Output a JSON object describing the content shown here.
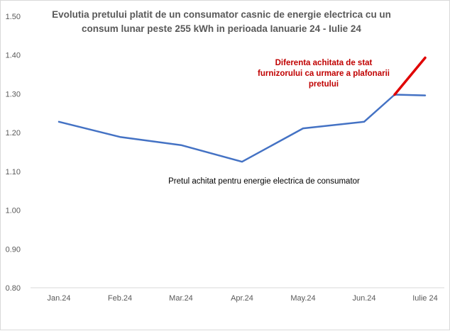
{
  "chart_data": {
    "type": "line",
    "title_lines": [
      "Evolutia pretului platit de un consumator casnic de energie electrica cu un",
      "consum lunar peste 255 kWh in perioada Ianuarie 24 - Iulie 24"
    ],
    "categories": [
      "Jan.24",
      "Feb.24",
      "Mar.24",
      "Apr.24",
      "May.24",
      "Jun.24",
      "Iulie 24"
    ],
    "ylim": [
      0.8,
      1.5
    ],
    "yticks": [
      "0.80",
      "0.90",
      "1.00",
      "1.10",
      "1.20",
      "1.30",
      "1.40",
      "1.50"
    ],
    "grid": false,
    "series": [
      {
        "name": "Pretul achitat pentru energie electrica de consumator",
        "color": "#4472c4",
        "x": [
          0,
          1,
          2,
          3,
          4,
          5,
          5.5,
          6
        ],
        "values": [
          1.228,
          1.189,
          1.168,
          1.125,
          1.211,
          1.228,
          1.298,
          1.296
        ]
      },
      {
        "name": "Diferenta achitata de stat furnizorului ca urmare a plafonarii pretului",
        "color": "#e00000",
        "x": [
          5.5,
          6
        ],
        "values": [
          1.298,
          1.393
        ]
      }
    ],
    "annotations": {
      "red_lines": [
        "Diferenta achitata de stat",
        "furnizorului  ca urmare a plafonarii",
        "pretului"
      ],
      "blue_label": "Pretul achitat pentru energie electrica de consumator"
    }
  }
}
